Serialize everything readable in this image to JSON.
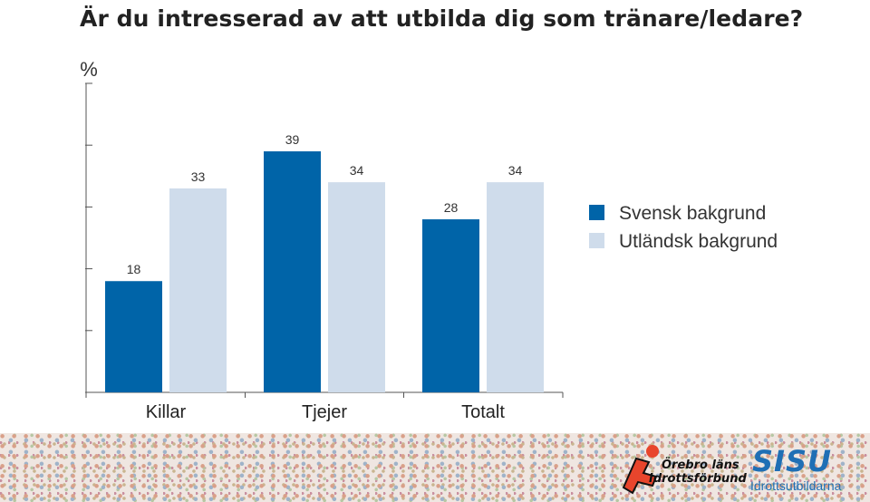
{
  "title": "Är du intresserad av att utbilda dig som tränare/ledare?",
  "colors": {
    "svensk": "#0064a8",
    "utlandsk": "#cfdceb",
    "axis": "#555555",
    "text": "#333333"
  },
  "chart_data": {
    "type": "bar",
    "title": "Är du intresserad av att utbilda dig som tränare/ledare?",
    "ylabel": "%",
    "xlabel": "",
    "ylim": [
      0,
      50
    ],
    "yticks": [
      0,
      10,
      20,
      30,
      40,
      50
    ],
    "categories": [
      "Killar",
      "Tjejer",
      "Totalt"
    ],
    "series": [
      {
        "name": "Svensk bakgrund",
        "values": [
          18,
          39,
          28
        ]
      },
      {
        "name": "Utländsk bakgrund",
        "values": [
          33,
          34,
          34
        ]
      }
    ],
    "legend": "right",
    "grid": false
  },
  "footer": {
    "logo_lf_line1": "Örebro läns",
    "logo_lf_line2": "Idrottsförbund",
    "logo_sisu_word": "SISU",
    "logo_sisu_sub": "Idrottsutbildarna"
  }
}
